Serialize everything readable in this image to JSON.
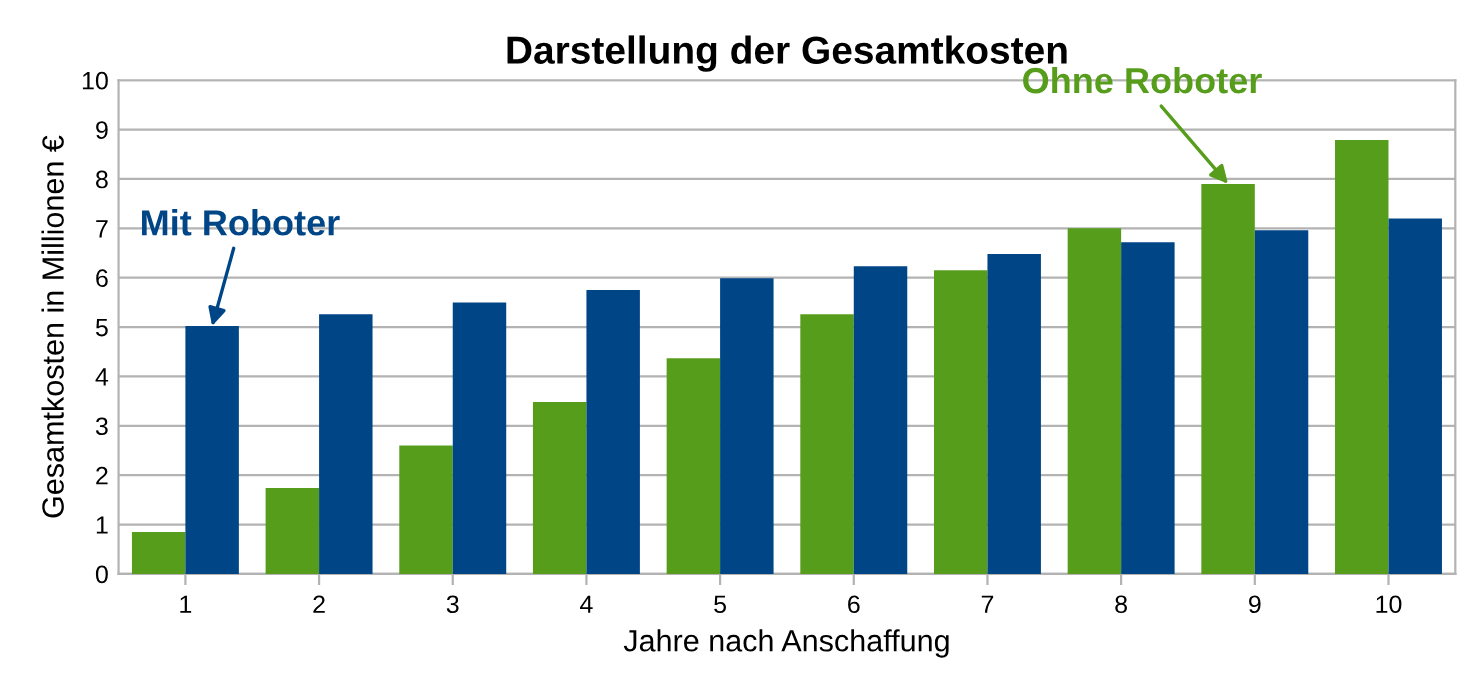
{
  "chart_data": {
    "type": "bar",
    "title": "Darstellung der Gesamtkosten",
    "xlabel": "Jahre nach Anschaffung",
    "ylabel": "Gesamtkosten in Millionen €",
    "categories": [
      "1",
      "2",
      "3",
      "4",
      "5",
      "6",
      "7",
      "8",
      "9",
      "10"
    ],
    "series": [
      {
        "color": "#579d1c",
        "values": [
          0.85,
          1.74,
          2.6,
          3.48,
          4.37,
          5.26,
          6.15,
          7.0,
          7.9,
          8.79
        ]
      },
      {
        "color": "#004586",
        "values": [
          5.02,
          5.26,
          5.5,
          5.75,
          5.99,
          6.23,
          6.48,
          6.72,
          6.96,
          7.2
        ]
      }
    ],
    "annotations": [
      {
        "text": "Mit Roboter",
        "x": "1",
        "y": 5.02
      },
      {
        "text": "Ohne Roboter",
        "x": "9",
        "y": 7.9
      }
    ],
    "ylim": [
      0,
      10
    ],
    "yticks": [
      0,
      1,
      2,
      3,
      4,
      5,
      6,
      7,
      8,
      9,
      10
    ],
    "grid": "y"
  }
}
